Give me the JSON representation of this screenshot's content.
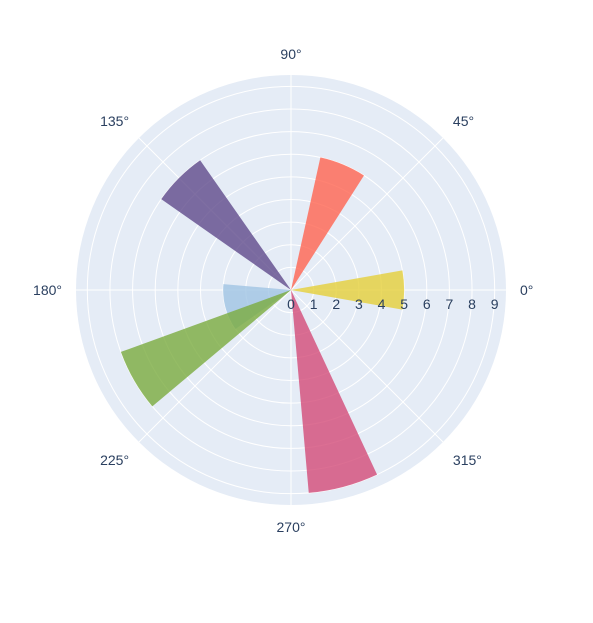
{
  "chart_data": {
    "type": "barpolar",
    "radial_axis": {
      "range": [
        0,
        9.5
      ],
      "tickvals": [
        0,
        1,
        2,
        3,
        4,
        5,
        6,
        7,
        8,
        9
      ],
      "ticklabels": [
        "0",
        "1",
        "2",
        "3",
        "4",
        "5",
        "6",
        "7",
        "8",
        "9"
      ],
      "angle_deg": 0
    },
    "angular_axis": {
      "ticklabels": [
        "0°",
        "45°",
        "90°",
        "135°",
        "180°",
        "225°",
        "270°",
        "315°"
      ],
      "tickvals_deg": [
        0,
        45,
        90,
        135,
        180,
        225,
        270,
        315
      ],
      "direction": "counterclockwise",
      "rotation_deg": 0
    },
    "grid": true,
    "bars": [
      {
        "theta_deg": 0,
        "width_deg": 20,
        "r": 5,
        "color": "#e5cf3a"
      },
      {
        "theta_deg": 67.5,
        "width_deg": 20,
        "r": 6,
        "color": "#ff6450"
      },
      {
        "theta_deg": 135,
        "width_deg": 20,
        "r": 7,
        "color": "#5f4a8b"
      },
      {
        "theta_deg": 195,
        "width_deg": 40,
        "r": 3,
        "color": "#a0c4e4"
      },
      {
        "theta_deg": 210,
        "width_deg": 20,
        "r": 8,
        "color": "#7aab3e"
      },
      {
        "theta_deg": 285,
        "width_deg": 20,
        "r": 9,
        "color": "#d34b78"
      }
    ],
    "colors": {
      "plot_bg": "#e5ecf6",
      "grid": "#ffffff",
      "text": "#2a3f5f"
    }
  }
}
